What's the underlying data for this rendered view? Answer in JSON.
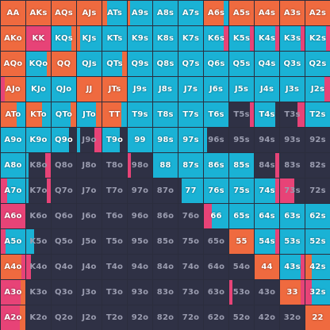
{
  "colors": {
    "raise": "#ef6a3f",
    "call": "#1ab2d5",
    "allin": "#e74377",
    "fold": "#2f3145"
  },
  "hands": [
    [
      {
        "l": "AA",
        "a": "raise"
      },
      {
        "l": "AKs",
        "a": "raise"
      },
      {
        "l": "AQs",
        "a": "raise"
      },
      {
        "l": "AJs",
        "a": "raise"
      },
      {
        "l": "ATs",
        "a": "call"
      },
      {
        "l": "A9s",
        "a": "call"
      },
      {
        "l": "A8s",
        "a": "call"
      },
      {
        "l": "A7s",
        "a": "call"
      },
      {
        "l": "A6s",
        "a": "raise"
      },
      {
        "l": "A5s",
        "a": "raise"
      },
      {
        "l": "A4s",
        "a": "raise"
      },
      {
        "l": "A3s",
        "a": "raise"
      },
      {
        "l": "A2s",
        "a": "raise"
      }
    ],
    [
      {
        "l": "AKo",
        "a": "raise"
      },
      {
        "l": "KK",
        "a": "allin"
      },
      {
        "l": "KQs",
        "a": "call"
      },
      {
        "l": "KJs",
        "a": "call"
      },
      {
        "l": "KTs",
        "a": "call"
      },
      {
        "l": "K9s",
        "a": "call"
      },
      {
        "l": "K8s",
        "a": "call"
      },
      {
        "l": "K7s",
        "a": "call"
      },
      {
        "l": "K6s",
        "a": "call"
      },
      {
        "l": "K5s",
        "a": "call"
      },
      {
        "l": "K4s",
        "a": "call"
      },
      {
        "l": "K3s",
        "a": "call"
      },
      {
        "l": "K2s",
        "a": "call"
      }
    ],
    [
      {
        "l": "AQo",
        "a": "raise"
      },
      {
        "l": "KQo",
        "a": "call"
      },
      {
        "l": "QQ",
        "a": "raise"
      },
      {
        "l": "QJs",
        "a": "call"
      },
      {
        "l": "QTs",
        "a": "call"
      },
      {
        "l": "Q9s",
        "a": "call"
      },
      {
        "l": "Q8s",
        "a": "call"
      },
      {
        "l": "Q7s",
        "a": "call"
      },
      {
        "l": "Q6s",
        "a": "call"
      },
      {
        "l": "Q5s",
        "a": "call"
      },
      {
        "l": "Q4s",
        "a": "call"
      },
      {
        "l": "Q3s",
        "a": "call"
      },
      {
        "l": "Q2s",
        "a": "call"
      }
    ],
    [
      {
        "l": "AJo",
        "a": "raise"
      },
      {
        "l": "KJo",
        "a": "call"
      },
      {
        "l": "QJo",
        "a": "call"
      },
      {
        "l": "JJ",
        "a": "raise"
      },
      {
        "l": "JTs",
        "a": "raise"
      },
      {
        "l": "J9s",
        "a": "call"
      },
      {
        "l": "J8s",
        "a": "call"
      },
      {
        "l": "J7s",
        "a": "call"
      },
      {
        "l": "J6s",
        "a": "call"
      },
      {
        "l": "J5s",
        "a": "call"
      },
      {
        "l": "J4s",
        "a": "call"
      },
      {
        "l": "J3s",
        "a": "call"
      },
      {
        "l": "J2s",
        "a": "call"
      }
    ],
    [
      {
        "l": "ATo",
        "a": "raise"
      },
      {
        "l": "KTo",
        "a": "raise"
      },
      {
        "l": "QTo",
        "a": "call"
      },
      {
        "l": "JTo",
        "a": "call"
      },
      {
        "l": "TT",
        "a": "raise"
      },
      {
        "l": "T9s",
        "a": "call"
      },
      {
        "l": "T8s",
        "a": "call"
      },
      {
        "l": "T7s",
        "a": "call"
      },
      {
        "l": "T6s",
        "a": "call"
      },
      {
        "l": "T5s",
        "a": "fold"
      },
      {
        "l": "T4s",
        "a": "call"
      },
      {
        "l": "T3s",
        "a": "fold"
      },
      {
        "l": "T2s",
        "a": "call"
      }
    ],
    [
      {
        "l": "A9o",
        "a": "call"
      },
      {
        "l": "K9o",
        "a": "call"
      },
      {
        "l": "Q9o",
        "a": "call"
      },
      {
        "l": "J9o",
        "a": "fold"
      },
      {
        "l": "T9o",
        "a": "call"
      },
      {
        "l": "99",
        "a": "call"
      },
      {
        "l": "98s",
        "a": "call"
      },
      {
        "l": "97s",
        "a": "call"
      },
      {
        "l": "96s",
        "a": "fold"
      },
      {
        "l": "95s",
        "a": "fold"
      },
      {
        "l": "94s",
        "a": "fold"
      },
      {
        "l": "93s",
        "a": "fold"
      },
      {
        "l": "92s",
        "a": "fold"
      }
    ],
    [
      {
        "l": "A8o",
        "a": "call"
      },
      {
        "l": "K8o",
        "a": "fold"
      },
      {
        "l": "Q8o",
        "a": "fold"
      },
      {
        "l": "J8o",
        "a": "fold"
      },
      {
        "l": "T8o",
        "a": "fold"
      },
      {
        "l": "98o",
        "a": "fold"
      },
      {
        "l": "88",
        "a": "call"
      },
      {
        "l": "87s",
        "a": "call"
      },
      {
        "l": "86s",
        "a": "call"
      },
      {
        "l": "85s",
        "a": "call"
      },
      {
        "l": "84s",
        "a": "fold"
      },
      {
        "l": "83s",
        "a": "fold"
      },
      {
        "l": "82s",
        "a": "fold"
      }
    ],
    [
      {
        "l": "A7o",
        "a": "call"
      },
      {
        "l": "K7o",
        "a": "fold"
      },
      {
        "l": "Q7o",
        "a": "fold"
      },
      {
        "l": "J7o",
        "a": "fold"
      },
      {
        "l": "T7o",
        "a": "fold"
      },
      {
        "l": "97o",
        "a": "fold"
      },
      {
        "l": "87o",
        "a": "fold"
      },
      {
        "l": "77",
        "a": "call"
      },
      {
        "l": "76s",
        "a": "call"
      },
      {
        "l": "75s",
        "a": "call"
      },
      {
        "l": "74s",
        "a": "call"
      },
      {
        "l": "73s",
        "a": "fold"
      },
      {
        "l": "72s",
        "a": "fold"
      }
    ],
    [
      {
        "l": "A6o",
        "a": "allin"
      },
      {
        "l": "K6o",
        "a": "fold"
      },
      {
        "l": "Q6o",
        "a": "fold"
      },
      {
        "l": "J6o",
        "a": "fold"
      },
      {
        "l": "T6o",
        "a": "fold"
      },
      {
        "l": "96o",
        "a": "fold"
      },
      {
        "l": "86o",
        "a": "fold"
      },
      {
        "l": "76o",
        "a": "fold"
      },
      {
        "l": "66",
        "a": "call"
      },
      {
        "l": "65s",
        "a": "call"
      },
      {
        "l": "64s",
        "a": "call"
      },
      {
        "l": "63s",
        "a": "call"
      },
      {
        "l": "62s",
        "a": "call"
      }
    ],
    [
      {
        "l": "A5o",
        "a": "call"
      },
      {
        "l": "K5o",
        "a": "fold"
      },
      {
        "l": "Q5o",
        "a": "fold"
      },
      {
        "l": "J5o",
        "a": "fold"
      },
      {
        "l": "T5o",
        "a": "fold"
      },
      {
        "l": "95o",
        "a": "fold"
      },
      {
        "l": "85o",
        "a": "fold"
      },
      {
        "l": "75o",
        "a": "fold"
      },
      {
        "l": "65o",
        "a": "fold"
      },
      {
        "l": "55",
        "a": "raise"
      },
      {
        "l": "54s",
        "a": "call"
      },
      {
        "l": "53s",
        "a": "call"
      },
      {
        "l": "52s",
        "a": "call"
      }
    ],
    [
      {
        "l": "A4o",
        "a": "raise"
      },
      {
        "l": "K4o",
        "a": "fold"
      },
      {
        "l": "Q4o",
        "a": "fold"
      },
      {
        "l": "J4o",
        "a": "fold"
      },
      {
        "l": "T4o",
        "a": "fold"
      },
      {
        "l": "94o",
        "a": "fold"
      },
      {
        "l": "84o",
        "a": "fold"
      },
      {
        "l": "74o",
        "a": "fold"
      },
      {
        "l": "64o",
        "a": "fold"
      },
      {
        "l": "54o",
        "a": "fold"
      },
      {
        "l": "44",
        "a": "raise"
      },
      {
        "l": "43s",
        "a": "call"
      },
      {
        "l": "42s",
        "a": "call"
      }
    ],
    [
      {
        "l": "A3o",
        "a": "allin"
      },
      {
        "l": "K3o",
        "a": "fold"
      },
      {
        "l": "Q3o",
        "a": "fold"
      },
      {
        "l": "J3o",
        "a": "fold"
      },
      {
        "l": "T3o",
        "a": "fold"
      },
      {
        "l": "93o",
        "a": "fold"
      },
      {
        "l": "83o",
        "a": "fold"
      },
      {
        "l": "73o",
        "a": "fold"
      },
      {
        "l": "63o",
        "a": "fold"
      },
      {
        "l": "53o",
        "a": "fold"
      },
      {
        "l": "43o",
        "a": "fold"
      },
      {
        "l": "33",
        "a": "raise"
      },
      {
        "l": "32s",
        "a": "call"
      }
    ],
    [
      {
        "l": "A2o",
        "a": "raise"
      },
      {
        "l": "K2o",
        "a": "fold"
      },
      {
        "l": "Q2o",
        "a": "fold"
      },
      {
        "l": "J2o",
        "a": "fold"
      },
      {
        "l": "T2o",
        "a": "fold"
      },
      {
        "l": "92o",
        "a": "fold"
      },
      {
        "l": "82o",
        "a": "fold"
      },
      {
        "l": "72o",
        "a": "fold"
      },
      {
        "l": "62o",
        "a": "fold"
      },
      {
        "l": "52o",
        "a": "fold"
      },
      {
        "l": "42o",
        "a": "fold"
      },
      {
        "l": "32o",
        "a": "fold"
      },
      {
        "l": "22",
        "a": "raise"
      }
    ]
  ]
}
